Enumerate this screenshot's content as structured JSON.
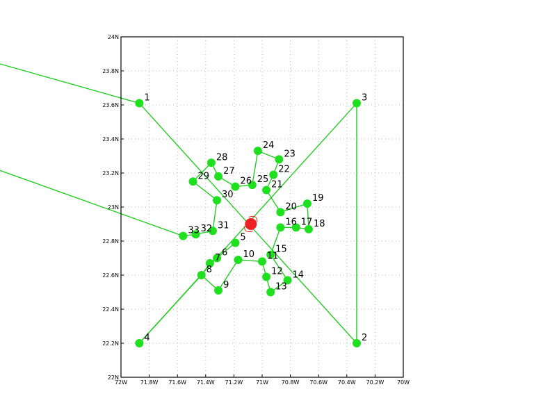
{
  "chart_data": {
    "type": "scatter",
    "xlim": [
      -72,
      -70
    ],
    "ylim": [
      22,
      24
    ],
    "x_ticks": [
      {
        "value": -72,
        "label": "72W"
      },
      {
        "value": -71.8,
        "label": "71.8W"
      },
      {
        "value": -71.6,
        "label": "71.6W"
      },
      {
        "value": -71.4,
        "label": "71.4W"
      },
      {
        "value": -71.2,
        "label": "71.2W"
      },
      {
        "value": -71.0,
        "label": "71W"
      },
      {
        "value": -70.8,
        "label": "70.8W"
      },
      {
        "value": -70.6,
        "label": "70.6W"
      },
      {
        "value": -70.4,
        "label": "70.4W"
      },
      {
        "value": -70.2,
        "label": "70.2W"
      },
      {
        "value": -70,
        "label": "70W"
      }
    ],
    "y_ticks": [
      {
        "value": 22,
        "label": "22N"
      },
      {
        "value": 22.2,
        "label": "22.2N"
      },
      {
        "value": 22.4,
        "label": "22.4N"
      },
      {
        "value": 22.6,
        "label": "22.6N"
      },
      {
        "value": 22.8,
        "label": "22.8N"
      },
      {
        "value": 23,
        "label": "23N"
      },
      {
        "value": 23.2,
        "label": "23.2N"
      },
      {
        "value": 23.4,
        "label": "23.4N"
      },
      {
        "value": 23.6,
        "label": "23.6N"
      },
      {
        "value": 23.8,
        "label": "23.8N"
      },
      {
        "value": 24,
        "label": "24N"
      }
    ],
    "grid": true,
    "center": {
      "x": -71.08,
      "y": 22.9
    },
    "points": [
      {
        "label": "1",
        "x": -71.87,
        "y": 23.61
      },
      {
        "label": "2",
        "x": -70.33,
        "y": 22.2
      },
      {
        "label": "3",
        "x": -70.33,
        "y": 23.61
      },
      {
        "label": "4",
        "x": -71.87,
        "y": 22.2
      },
      {
        "label": "5",
        "x": -71.19,
        "y": 22.79
      },
      {
        "label": "6",
        "x": -71.32,
        "y": 22.7
      },
      {
        "label": "7",
        "x": -71.37,
        "y": 22.67
      },
      {
        "label": "8",
        "x": -71.43,
        "y": 22.6
      },
      {
        "label": "9",
        "x": -71.31,
        "y": 22.51
      },
      {
        "label": "10",
        "x": -71.17,
        "y": 22.69
      },
      {
        "label": "11",
        "x": -71.0,
        "y": 22.68
      },
      {
        "label": "12",
        "x": -70.97,
        "y": 22.59
      },
      {
        "label": "13",
        "x": -70.94,
        "y": 22.5
      },
      {
        "label": "14",
        "x": -70.82,
        "y": 22.57
      },
      {
        "label": "15",
        "x": -70.94,
        "y": 22.72
      },
      {
        "label": "16",
        "x": -70.87,
        "y": 22.88
      },
      {
        "label": "17",
        "x": -70.76,
        "y": 22.88
      },
      {
        "label": "18",
        "x": -70.67,
        "y": 22.87
      },
      {
        "label": "19",
        "x": -70.68,
        "y": 23.02
      },
      {
        "label": "20",
        "x": -70.87,
        "y": 22.97
      },
      {
        "label": "21",
        "x": -70.97,
        "y": 23.1
      },
      {
        "label": "22",
        "x": -70.92,
        "y": 23.19
      },
      {
        "label": "23",
        "x": -70.88,
        "y": 23.28
      },
      {
        "label": "24",
        "x": -71.03,
        "y": 23.33
      },
      {
        "label": "25",
        "x": -71.07,
        "y": 23.13
      },
      {
        "label": "26",
        "x": -71.19,
        "y": 23.12
      },
      {
        "label": "27",
        "x": -71.31,
        "y": 23.18
      },
      {
        "label": "28",
        "x": -71.36,
        "y": 23.26
      },
      {
        "label": "29",
        "x": -71.49,
        "y": 23.15
      },
      {
        "label": "30",
        "x": -71.32,
        "y": 23.04
      },
      {
        "label": "31",
        "x": -71.35,
        "y": 22.86
      },
      {
        "label": "32",
        "x": -71.47,
        "y": 22.84
      },
      {
        "label": "33",
        "x": -71.56,
        "y": 22.83
      }
    ],
    "segments": [
      {
        "from": "1",
        "to": "2"
      },
      {
        "from": "2",
        "to": "3"
      },
      {
        "from": "3",
        "to": "4"
      },
      {
        "from": "4",
        "to": "8"
      },
      {
        "from": "5",
        "to": "6"
      },
      {
        "from": "6",
        "to": "7"
      },
      {
        "from": "7",
        "to": "8"
      },
      {
        "from": "8",
        "to": "9"
      },
      {
        "from": "9",
        "to": "10"
      },
      {
        "from": "10",
        "to": "11"
      },
      {
        "from": "11",
        "to": "12"
      },
      {
        "from": "12",
        "to": "13"
      },
      {
        "from": "13",
        "to": "14"
      },
      {
        "from": "14",
        "to": "15"
      },
      {
        "from": "15",
        "to": "16"
      },
      {
        "from": "16",
        "to": "17"
      },
      {
        "from": "17",
        "to": "18"
      },
      {
        "from": "18",
        "to": "19"
      },
      {
        "from": "19",
        "to": "20"
      },
      {
        "from": "20",
        "to": "21"
      },
      {
        "from": "21",
        "to": "22"
      },
      {
        "from": "22",
        "to": "23"
      },
      {
        "from": "23",
        "to": "24"
      },
      {
        "from": "24",
        "to": "25"
      },
      {
        "from": "25",
        "to": "26"
      },
      {
        "from": "26",
        "to": "27"
      },
      {
        "from": "27",
        "to": "28"
      },
      {
        "from": "28",
        "to": "29"
      },
      {
        "from": "29",
        "to": "30"
      },
      {
        "from": "30",
        "to": "31"
      },
      {
        "from": "31",
        "to": "32"
      },
      {
        "from": "32",
        "to": "33"
      }
    ],
    "offplot_lines": [
      {
        "to": "1",
        "from_x": -73.75,
        "from_y": 24.05
      },
      {
        "to": "33",
        "from_x": -73.75,
        "from_y": 23.48
      }
    ],
    "colors": {
      "track": "#22cc22",
      "point": "#1ee01e",
      "center": "#ee2222",
      "grid": "#b8b8b8"
    }
  }
}
